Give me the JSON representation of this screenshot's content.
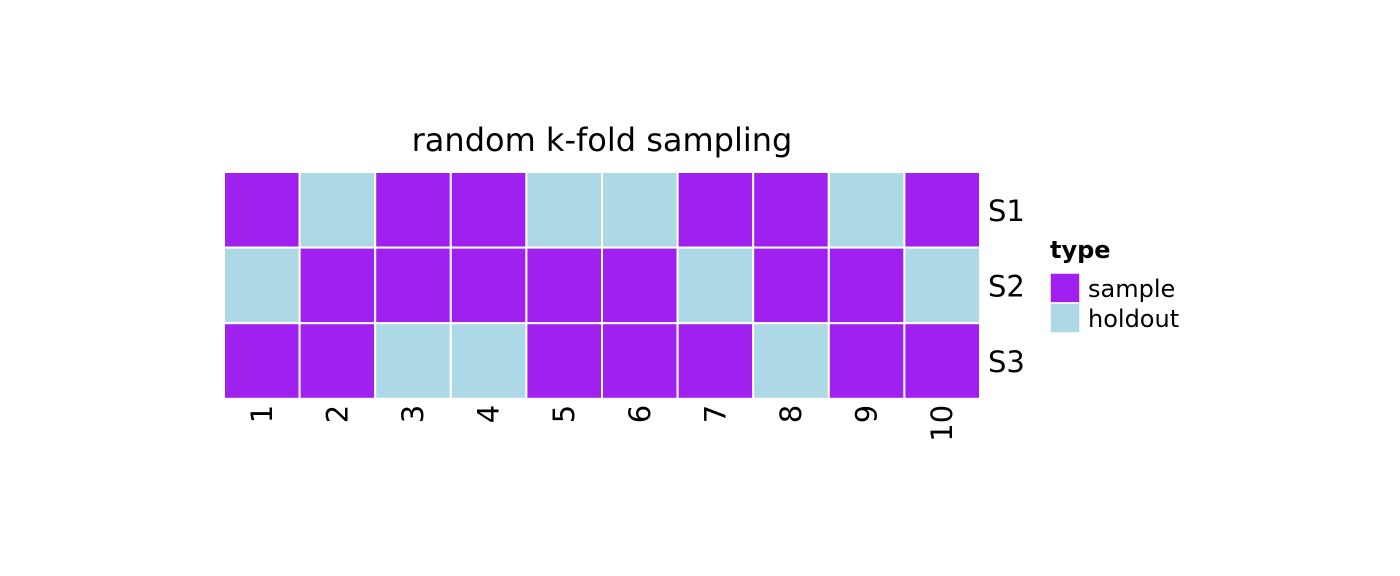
{
  "chart_data": {
    "type": "heatmap",
    "title": "random k-fold sampling",
    "xlabel": "",
    "ylabel": "",
    "columns": [
      "1",
      "2",
      "3",
      "4",
      "5",
      "6",
      "7",
      "8",
      "9",
      "10"
    ],
    "rows": [
      "S1",
      "S2",
      "S3"
    ],
    "values": [
      [
        "sample",
        "holdout",
        "sample",
        "sample",
        "holdout",
        "holdout",
        "sample",
        "sample",
        "holdout",
        "sample"
      ],
      [
        "holdout",
        "sample",
        "sample",
        "sample",
        "sample",
        "sample",
        "holdout",
        "sample",
        "sample",
        "holdout"
      ],
      [
        "sample",
        "sample",
        "holdout",
        "holdout",
        "sample",
        "sample",
        "sample",
        "holdout",
        "sample",
        "sample"
      ]
    ],
    "legend": {
      "title": "type",
      "position": "right",
      "entries": [
        {
          "label": "sample",
          "color": "#a020f0"
        },
        {
          "label": "holdout",
          "color": "#add8e6"
        }
      ]
    },
    "grid": false,
    "cell_border_color": "#ffffff",
    "background_color": "#ffffff"
  }
}
